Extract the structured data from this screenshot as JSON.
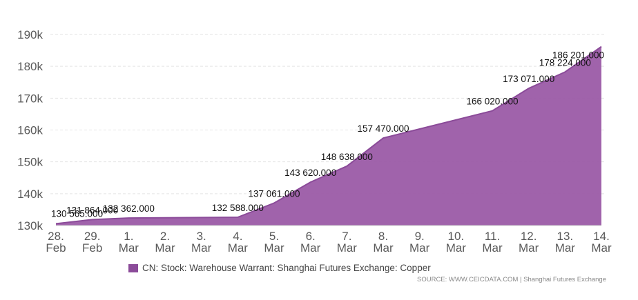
{
  "chart_data": {
    "type": "area",
    "x": [
      "28. Feb",
      "29. Feb",
      "1. Mar",
      "2. Mar",
      "3. Mar",
      "4. Mar",
      "5. Mar",
      "6. Mar",
      "7. Mar",
      "8. Mar",
      "9. Mar",
      "10. Mar",
      "11. Mar",
      "12. Mar",
      "13. Mar",
      "14. Mar"
    ],
    "x_tick_labels": [
      [
        "28.",
        "Feb"
      ],
      [
        "29.",
        "Feb"
      ],
      [
        "1.",
        "Mar"
      ],
      [
        "2.",
        "Mar"
      ],
      [
        "3.",
        "Mar"
      ],
      [
        "4.",
        "Mar"
      ],
      [
        "5.",
        "Mar"
      ],
      [
        "6.",
        "Mar"
      ],
      [
        "7.",
        "Mar"
      ],
      [
        "8.",
        "Mar"
      ],
      [
        "9.",
        "Mar"
      ],
      [
        "10.",
        "Mar"
      ],
      [
        "11.",
        "Mar"
      ],
      [
        "12.",
        "Mar"
      ],
      [
        "13.",
        "Mar"
      ],
      [
        "14.",
        "Mar"
      ]
    ],
    "series": [
      {
        "name": "CN: Stock: Warehouse Warrant: Shanghai Futures Exchange: Copper",
        "color": "#8b4b99",
        "points": [
          {
            "x": 0,
            "y": 130565,
            "label": "130 565.000"
          },
          {
            "x": 1,
            "y": 131864,
            "label": "131 864.000"
          },
          {
            "x": 2,
            "y": 132362,
            "label": "132 362.000"
          },
          {
            "x": 5,
            "y": 132588,
            "label": "132 588.000"
          },
          {
            "x": 6,
            "y": 137061,
            "label": "137 061.000"
          },
          {
            "x": 7,
            "y": 143620,
            "label": "143 620.000"
          },
          {
            "x": 8,
            "y": 148638,
            "label": "148 638.000"
          },
          {
            "x": 9,
            "y": 157470,
            "label": "157 470.000"
          },
          {
            "x": 12,
            "y": 166020,
            "label": "166 020.000"
          },
          {
            "x": 13,
            "y": 173071,
            "label": "173 071.000"
          },
          {
            "x": 14,
            "y": 178224,
            "label": "178 224.000"
          },
          {
            "x": 15,
            "y": 186201,
            "label": "186 201.000"
          }
        ]
      }
    ],
    "yticks": [
      130000,
      140000,
      150000,
      160000,
      170000,
      180000,
      190000
    ],
    "ytick_labels": [
      "130k",
      "140k",
      "150k",
      "160k",
      "170k",
      "180k",
      "190k"
    ],
    "ylim": [
      130000,
      190000
    ],
    "grid": true,
    "legend_position": "bottom-left"
  },
  "source_text": "SOURCE: WWW.CEICDATA.COM | Shanghai Futures Exchange"
}
